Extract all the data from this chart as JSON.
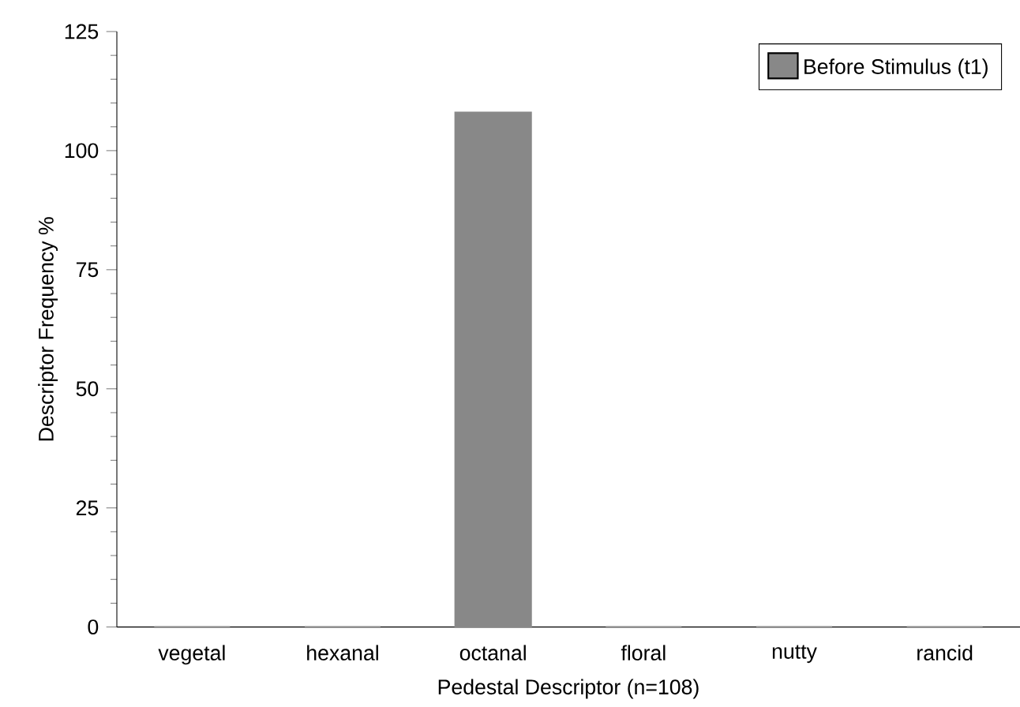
{
  "chart_data": {
    "type": "bar",
    "xlabel": "Pedestal Descriptor (n=108)",
    "ylabel": "Descriptor Frequency %",
    "categories": [
      "vegetal",
      "hexanal",
      "octanal",
      "floral",
      "nutty",
      "rancid"
    ],
    "series": [
      {
        "name": "Before Stimulus (t1)",
        "color": "#888888",
        "values": [
          0,
          0,
          108,
          0,
          0,
          0
        ]
      }
    ],
    "ylim": [
      0,
      125
    ],
    "yticks": [
      0,
      25,
      50,
      75,
      100,
      125
    ],
    "grid": false,
    "legend": "top right"
  }
}
